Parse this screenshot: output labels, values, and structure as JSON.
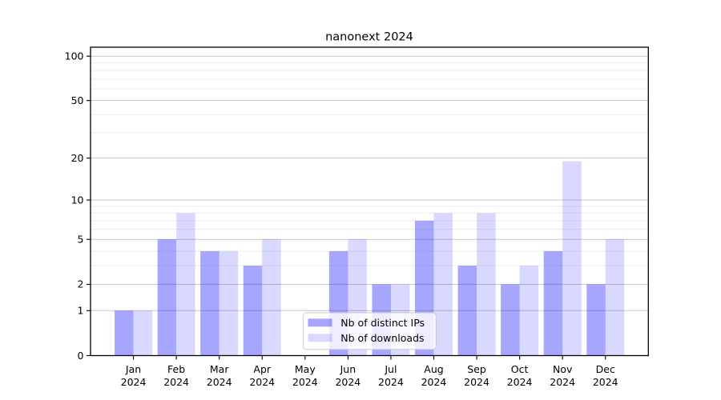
{
  "chart_data": {
    "type": "bar",
    "title": "nanonext 2024",
    "categories": [
      "Jan",
      "Feb",
      "Mar",
      "Apr",
      "May",
      "Jun",
      "Jul",
      "Aug",
      "Sep",
      "Oct",
      "Nov",
      "Dec"
    ],
    "category_year": "2024",
    "series": [
      {
        "name": "Nb of distinct IPs",
        "color": "#0000ff",
        "fill_opacity": 0.35,
        "rendered_color": "#a6a6ff",
        "values": [
          1,
          5,
          4,
          3,
          0,
          4,
          2,
          7,
          3,
          2,
          4,
          2
        ]
      },
      {
        "name": "Nb of downloads",
        "color": "#0000ff",
        "fill_opacity": 0.15,
        "rendered_color": "#d9d9ff",
        "values": [
          1,
          8,
          4,
          5,
          0,
          5,
          2,
          8,
          8,
          3,
          19,
          5
        ]
      }
    ],
    "y_axis": {
      "scale": "log1p",
      "major_ticks": [
        0,
        1,
        2,
        5,
        10,
        20,
        50,
        100
      ],
      "minor_ticks": [
        3,
        4,
        6,
        7,
        8,
        9,
        30,
        40,
        60,
        70,
        80,
        90
      ],
      "ymax": 115
    },
    "xlabel": "",
    "ylabel": "",
    "legend": {
      "position": "bottom-center",
      "entries": [
        "Nb of distinct IPs",
        "Nb of downloads"
      ]
    },
    "grid": true
  },
  "colors": {
    "background": "#ffffff",
    "axis": "#000000",
    "grid_major": "#c9c9c9",
    "grid_minor": "#ececec",
    "legend_border": "#cccccc",
    "legend_fill": "#ffffff"
  }
}
